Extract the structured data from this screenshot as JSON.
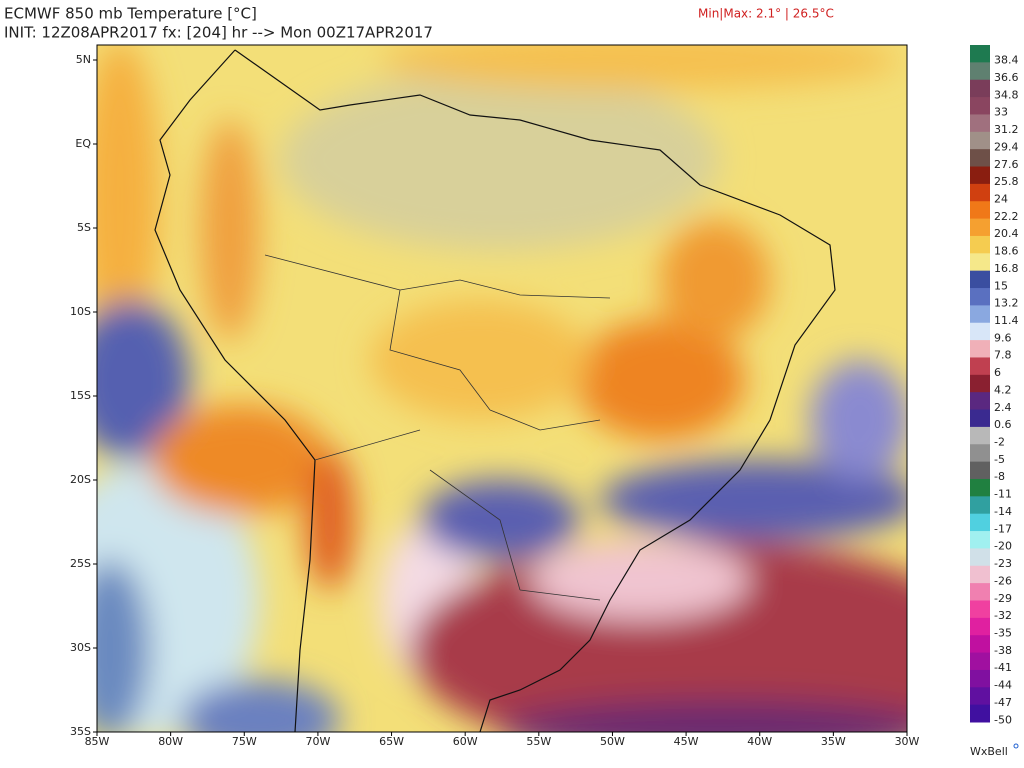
{
  "header": {
    "title": "ECMWF 850 mb Temperature [°C]",
    "init": "INIT: 12Z08APR2017 fx: [204] hr --> Mon 00Z17APR2017",
    "minmax": "Min|Max: 2.1° | 26.5°C"
  },
  "map": {
    "lat_labels": [
      "5N",
      "EQ",
      "5S",
      "10S",
      "15S",
      "20S",
      "25S",
      "30S",
      "35S"
    ],
    "lon_labels": [
      "85W",
      "80W",
      "75W",
      "70W",
      "65W",
      "60W",
      "55W",
      "50W",
      "45W",
      "40W",
      "35W",
      "30W"
    ]
  },
  "colorbar": {
    "labels": [
      "38.4",
      "36.6",
      "34.8",
      "33",
      "31.2",
      "29.4",
      "27.6",
      "25.8",
      "24",
      "22.2",
      "20.4",
      "18.6",
      "16.8",
      "15",
      "13.2",
      "11.4",
      "9.6",
      "7.8",
      "6",
      "4.2",
      "2.4",
      "0.6",
      "-2",
      "-5",
      "-8",
      "-11",
      "-14",
      "-17",
      "-20",
      "-23",
      "-26",
      "-29",
      "-32",
      "-35",
      "-38",
      "-41",
      "-44",
      "-47",
      "-50"
    ],
    "colors": [
      "#1e7a50",
      "#5f8070",
      "#7a3d5a",
      "#8a4560",
      "#a0707e",
      "#a09088",
      "#6e5048",
      "#8a1e10",
      "#d04010",
      "#f07818",
      "#f5a030",
      "#f5cc50",
      "#f5e88a",
      "#3a4ea0",
      "#5a70c0",
      "#8aa8e0",
      "#d8e6f8",
      "#f0b0b8",
      "#c04050",
      "#8a2030",
      "#5a2880",
      "#3a2a90",
      "#b8b8b8",
      "#909090",
      "#606060",
      "#208040",
      "#30a0a0",
      "#50d0e0",
      "#a0f0f0",
      "#d0e0e8",
      "#f0c0d0",
      "#f080b0",
      "#f040a0",
      "#e020a0",
      "#c010a0",
      "#a010a0",
      "#8010a0",
      "#6010a0",
      "#4010a0"
    ]
  },
  "footer": {
    "brand": "WxBell"
  }
}
